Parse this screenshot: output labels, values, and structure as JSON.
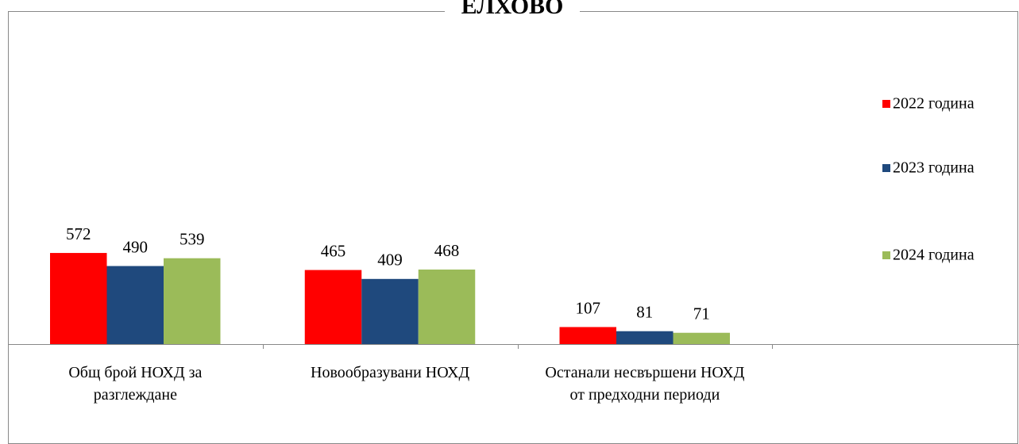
{
  "chart_data": {
    "type": "bar",
    "title": "ЕЛХОВО",
    "categories": [
      "Общ брой НОХД за разглеждане",
      "Новообразувани НОХД",
      "Останали несвършени НОХД от предходни периоди",
      null
    ],
    "series": [
      {
        "name": "2022 година",
        "color": "#ff0000",
        "values": [
          572,
          465,
          107,
          null
        ]
      },
      {
        "name": "2023 година",
        "color": "#1f497d",
        "values": [
          490,
          409,
          81,
          null
        ]
      },
      {
        "name": "2024 година",
        "color": "#9bbb59",
        "values": [
          539,
          468,
          71,
          null
        ]
      }
    ],
    "ylim": [
      0,
      2110
    ],
    "legend": "right"
  }
}
